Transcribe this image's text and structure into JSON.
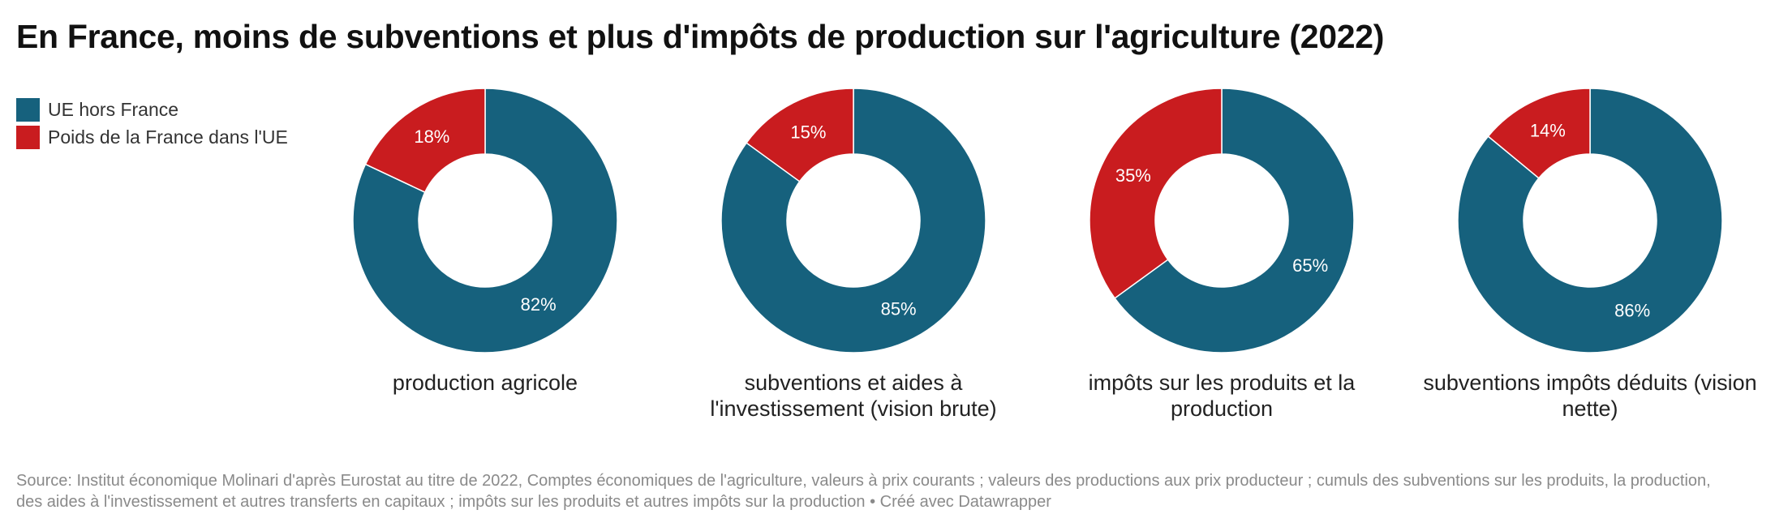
{
  "title": "En France, moins de subventions et plus d'impôts de production sur l'agriculture (2022)",
  "legend": [
    {
      "label": "UE hors France",
      "color": "#16617d"
    },
    {
      "label": "Poids de la France dans l'UE",
      "color": "#c91c1f"
    }
  ],
  "chart_data": [
    {
      "type": "pie",
      "title": "production agricole",
      "slices": [
        {
          "name": "UE hors France",
          "value": 82,
          "label": "82%",
          "color": "#16617d"
        },
        {
          "name": "Poids de la France dans l'UE",
          "value": 18,
          "label": "18%",
          "color": "#c91c1f"
        }
      ]
    },
    {
      "type": "pie",
      "title": "subventions et aides à l'investissement (vision brute)",
      "slices": [
        {
          "name": "UE hors France",
          "value": 85,
          "label": "85%",
          "color": "#16617d"
        },
        {
          "name": "Poids de la France dans l'UE",
          "value": 15,
          "label": "15%",
          "color": "#c91c1f"
        }
      ]
    },
    {
      "type": "pie",
      "title": "impôts sur les produits et la production",
      "slices": [
        {
          "name": "UE hors France",
          "value": 65,
          "label": "65%",
          "color": "#16617d"
        },
        {
          "name": "Poids de la France dans l'UE",
          "value": 35,
          "label": "35%",
          "color": "#c91c1f"
        }
      ]
    },
    {
      "type": "pie",
      "title": "subventions impôts déduits (vision nette)",
      "slices": [
        {
          "name": "UE hors France",
          "value": 86,
          "label": "86%",
          "color": "#16617d"
        },
        {
          "name": "Poids de la France dans l'UE",
          "value": 14,
          "label": "14%",
          "color": "#c91c1f"
        }
      ]
    }
  ],
  "source": "Source: Institut économique Molinari d'après Eurostat au titre de 2022, Comptes économiques de l'agriculture, valeurs à prix courants ; valeurs des productions aux prix producteur ; cumuls des subventions sur les produits, la production, des aides à l'investissement et autres transferts en capitaux ; impôts sur les produits et autres impôts sur la production • Créé avec Datawrapper"
}
